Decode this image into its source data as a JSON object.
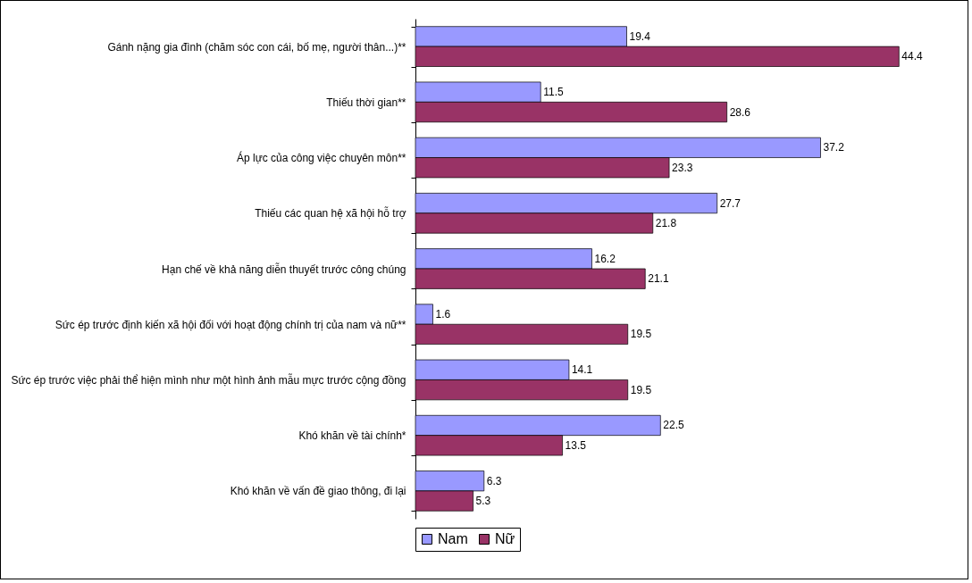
{
  "chart_data": {
    "type": "bar",
    "orientation": "horizontal",
    "categories": [
      "Gánh nặng gia đình (chăm sóc con cái, bố mẹ, người thân...)**",
      "Thiếu thời gian**",
      "Áp lực của công việc chuyên môn**",
      "Thiếu các quan hệ xã hội hỗ trợ",
      "Hạn chế về khả năng diễn thuyết trước công chúng",
      "Sức ép trước định kiến xã hội đối với hoạt động chính trị của nam và nữ**",
      "Sức ép trước việc phải thể hiện mình như một hình ảnh mẫu mực trước cộng đồng",
      "Khó khăn về tài chính*",
      "Khó khăn về vấn đề giao thông, đi lại"
    ],
    "series": [
      {
        "name": "Nam",
        "color": "#9999ff",
        "values": [
          19.4,
          11.5,
          37.2,
          27.7,
          16.2,
          1.6,
          14.1,
          22.5,
          6.3
        ]
      },
      {
        "name": "Nữ",
        "color": "#993366",
        "values": [
          44.4,
          28.6,
          23.3,
          21.8,
          21.1,
          19.5,
          19.5,
          13.5,
          5.3
        ]
      }
    ],
    "data_labels": true,
    "legend": "bottom"
  }
}
